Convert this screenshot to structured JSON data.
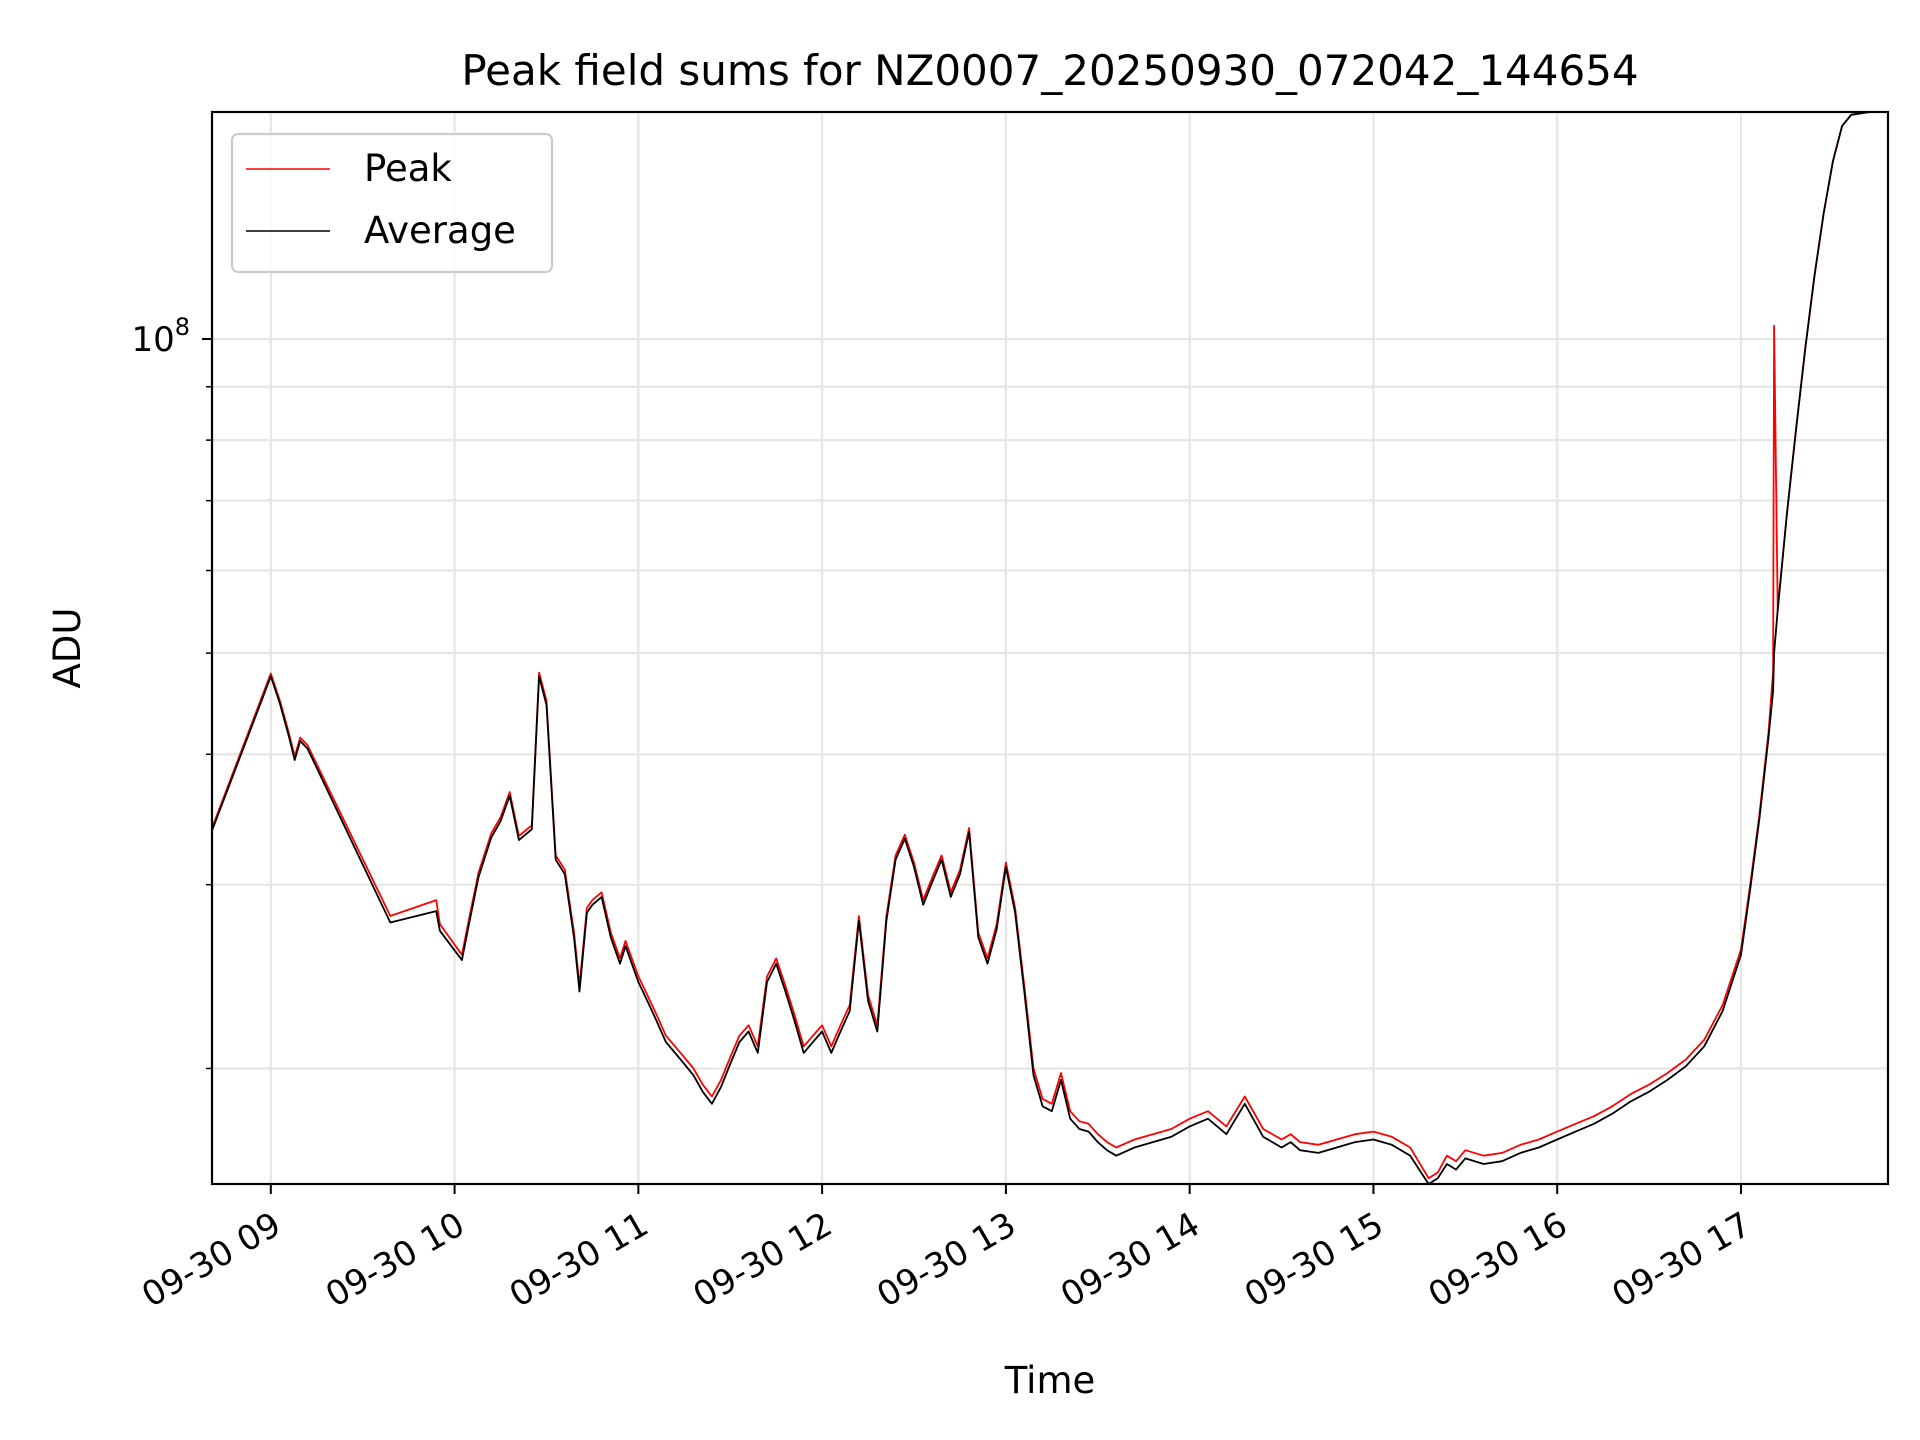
{
  "chart_data": {
    "type": "line",
    "title": "Peak field sums for NZ0007_20250930_072042_144654",
    "xlabel": "Time",
    "ylabel": "ADU",
    "yscale": "log",
    "x_unit": "hour of 2025-09-30",
    "xlim": [
      8.68,
      17.8
    ],
    "ylim": [
      15500000,
      165000000
    ],
    "grid": true,
    "legend_position": "upper left",
    "x_ticks": [
      {
        "value": 9,
        "label": "09-30 09"
      },
      {
        "value": 10,
        "label": "09-30 10"
      },
      {
        "value": 11,
        "label": "09-30 11"
      },
      {
        "value": 12,
        "label": "09-30 12"
      },
      {
        "value": 13,
        "label": "09-30 13"
      },
      {
        "value": 14,
        "label": "09-30 14"
      },
      {
        "value": 15,
        "label": "09-30 15"
      },
      {
        "value": 16,
        "label": "09-30 16"
      },
      {
        "value": 17,
        "label": "09-30 17"
      }
    ],
    "y_ticks": [
      {
        "value": 100000000,
        "base": "10",
        "exp": "8"
      }
    ],
    "series": [
      {
        "name": "Peak",
        "color": "#ff0000",
        "x": [
          8.68,
          9.0,
          9.05,
          9.1,
          9.13,
          9.16,
          9.2,
          9.65,
          9.9,
          9.92,
          10.04,
          10.08,
          10.13,
          10.2,
          10.25,
          10.3,
          10.35,
          10.42,
          10.46,
          10.5,
          10.55,
          10.6,
          10.65,
          10.68,
          10.72,
          10.75,
          10.8,
          10.85,
          10.9,
          10.93,
          11.0,
          11.05,
          11.1,
          11.15,
          11.2,
          11.25,
          11.3,
          11.35,
          11.4,
          11.45,
          11.5,
          11.55,
          11.6,
          11.65,
          11.7,
          11.75,
          11.8,
          11.85,
          11.9,
          11.95,
          12.0,
          12.05,
          12.1,
          12.15,
          12.2,
          12.25,
          12.3,
          12.35,
          12.4,
          12.45,
          12.5,
          12.55,
          12.6,
          12.65,
          12.7,
          12.75,
          12.8,
          12.85,
          12.9,
          12.95,
          13.0,
          13.05,
          13.1,
          13.15,
          13.2,
          13.25,
          13.3,
          13.35,
          13.4,
          13.45,
          13.5,
          13.55,
          13.6,
          13.7,
          13.8,
          13.9,
          14.0,
          14.1,
          14.2,
          14.3,
          14.4,
          14.5,
          14.55,
          14.6,
          14.7,
          14.8,
          14.9,
          15.0,
          15.1,
          15.2,
          15.3,
          15.35,
          15.4,
          15.45,
          15.5,
          15.6,
          15.7,
          15.8,
          15.9,
          16.0,
          16.1,
          16.2,
          16.3,
          16.4,
          16.5,
          16.6,
          16.7,
          16.8,
          16.9,
          17.0,
          17.05,
          17.1,
          17.15,
          17.175,
          17.18,
          17.2,
          17.25,
          17.3,
          17.35,
          17.4,
          17.45,
          17.5,
          17.55,
          17.6,
          17.7,
          17.8
        ],
        "y": [
          34000000,
          47800000,
          45000000,
          41800000,
          39800000,
          41500000,
          40800000,
          28000000,
          29000000,
          27500000,
          25700000,
          27900000,
          30800000,
          33600000,
          34800000,
          36800000,
          33400000,
          34200000,
          47900000,
          45000000,
          32000000,
          31000000,
          27000000,
          24000000,
          28500000,
          29000000,
          29500000,
          27000000,
          25500000,
          26500000,
          24500000,
          23500000,
          22500000,
          21500000,
          21000000,
          20500000,
          20000000,
          19300000,
          18800000,
          19500000,
          20500000,
          21500000,
          22000000,
          21000000,
          24500000,
          25500000,
          24000000,
          22500000,
          21000000,
          21500000,
          22000000,
          21000000,
          22000000,
          23000000,
          28000000,
          23500000,
          22000000,
          28000000,
          32000000,
          33500000,
          31500000,
          29000000,
          30500000,
          32000000,
          29500000,
          31000000,
          34000000,
          27000000,
          25500000,
          27500000,
          31500000,
          28500000,
          24000000,
          20000000,
          18700000,
          18500000,
          19800000,
          18200000,
          17800000,
          17700000,
          17300000,
          17000000,
          16800000,
          17100000,
          17300000,
          17500000,
          17900000,
          18200000,
          17600000,
          18800000,
          17500000,
          17100000,
          17300000,
          17000000,
          16900000,
          17100000,
          17300000,
          17400000,
          17200000,
          16800000,
          15700000,
          15900000,
          16500000,
          16300000,
          16700000,
          16500000,
          16600000,
          16900000,
          17100000,
          17400000,
          17700000,
          18000000,
          18400000,
          18900000,
          19300000,
          19800000,
          20400000,
          21300000,
          23000000,
          26000000,
          30000000,
          35000000,
          42000000,
          48000000,
          103000000,
          55000000,
          68000000,
          82000000,
          98000000,
          115000000,
          132000000,
          148000000,
          160000000,
          164000000,
          165000000,
          165000000
        ]
      },
      {
        "name": "Average",
        "color": "#000000",
        "x": [
          8.68,
          9.0,
          9.05,
          9.1,
          9.13,
          9.16,
          9.2,
          9.65,
          9.9,
          9.92,
          10.04,
          10.08,
          10.13,
          10.2,
          10.25,
          10.3,
          10.35,
          10.42,
          10.46,
          10.5,
          10.55,
          10.6,
          10.65,
          10.68,
          10.72,
          10.75,
          10.8,
          10.85,
          10.9,
          10.93,
          11.0,
          11.05,
          11.1,
          11.15,
          11.2,
          11.25,
          11.3,
          11.35,
          11.4,
          11.45,
          11.5,
          11.55,
          11.6,
          11.65,
          11.7,
          11.75,
          11.8,
          11.85,
          11.9,
          11.95,
          12.0,
          12.05,
          12.1,
          12.15,
          12.2,
          12.25,
          12.3,
          12.35,
          12.4,
          12.45,
          12.5,
          12.55,
          12.6,
          12.65,
          12.7,
          12.75,
          12.8,
          12.85,
          12.9,
          12.95,
          13.0,
          13.05,
          13.1,
          13.15,
          13.2,
          13.25,
          13.3,
          13.35,
          13.4,
          13.45,
          13.5,
          13.55,
          13.6,
          13.7,
          13.8,
          13.9,
          14.0,
          14.1,
          14.2,
          14.3,
          14.4,
          14.5,
          14.55,
          14.6,
          14.7,
          14.8,
          14.9,
          15.0,
          15.1,
          15.2,
          15.3,
          15.35,
          15.4,
          15.45,
          15.5,
          15.6,
          15.7,
          15.8,
          15.9,
          16.0,
          16.1,
          16.2,
          16.3,
          16.4,
          16.5,
          16.6,
          16.7,
          16.8,
          16.9,
          17.0,
          17.05,
          17.1,
          17.15,
          17.175,
          17.18,
          17.2,
          17.25,
          17.3,
          17.35,
          17.4,
          17.45,
          17.5,
          17.55,
          17.6,
          17.7,
          17.8
        ],
        "y": [
          33800000,
          47500000,
          44700000,
          41500000,
          39500000,
          41200000,
          40500000,
          27600000,
          28300000,
          27100000,
          25400000,
          27600000,
          30500000,
          33300000,
          34500000,
          36500000,
          33100000,
          33900000,
          47500000,
          44600000,
          31700000,
          30700000,
          26700000,
          23700000,
          28200000,
          28700000,
          29200000,
          26700000,
          25200000,
          26200000,
          24200000,
          23200000,
          22200000,
          21200000,
          20700000,
          20200000,
          19700000,
          19000000,
          18500000,
          19200000,
          20200000,
          21200000,
          21700000,
          20700000,
          24200000,
          25200000,
          23700000,
          22200000,
          20700000,
          21200000,
          21700000,
          20700000,
          21700000,
          22700000,
          27700000,
          23200000,
          21700000,
          27700000,
          31700000,
          33200000,
          31200000,
          28700000,
          30200000,
          31700000,
          29200000,
          30700000,
          33700000,
          26700000,
          25200000,
          27200000,
          31200000,
          28200000,
          23700000,
          19700000,
          18400000,
          18200000,
          19500000,
          17900000,
          17500000,
          17400000,
          17000000,
          16700000,
          16500000,
          16800000,
          17000000,
          17200000,
          17600000,
          17900000,
          17300000,
          18500000,
          17200000,
          16800000,
          17000000,
          16700000,
          16600000,
          16800000,
          17000000,
          17100000,
          16900000,
          16500000,
          15500000,
          15700000,
          16200000,
          16000000,
          16400000,
          16200000,
          16300000,
          16600000,
          16800000,
          17100000,
          17400000,
          17700000,
          18100000,
          18600000,
          19000000,
          19500000,
          20100000,
          21000000,
          22700000,
          25700000,
          29700000,
          34700000,
          41500000,
          46000000,
          50000000,
          55000000,
          68000000,
          82000000,
          98000000,
          115000000,
          132000000,
          148000000,
          160000000,
          164000000,
          165000000,
          165000000
        ]
      }
    ]
  }
}
